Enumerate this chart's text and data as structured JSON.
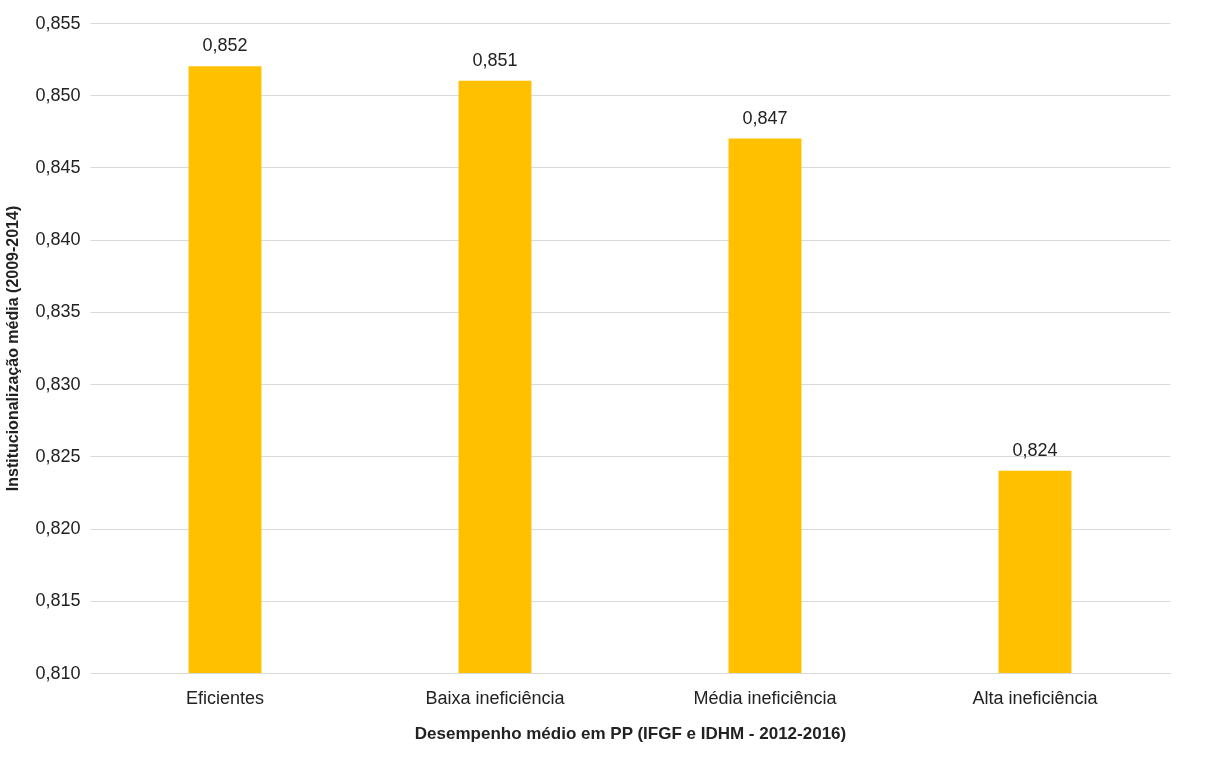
{
  "chart_data": {
    "type": "bar",
    "xlabel": "Desempenho médio em PP (IFGF e IDHM - 2012-2016)",
    "ylabel": "Institucionalização média (2009-2014)",
    "categories": [
      "Eficientes",
      "Baixa ineficiência",
      "Média ineficiência",
      "Alta ineficiência"
    ],
    "values": [
      0.852,
      0.851,
      0.847,
      0.824
    ],
    "value_labels": [
      "0,852",
      "0,851",
      "0,847",
      "0,824"
    ],
    "color": "#ffc000",
    "ylim": [
      0.81,
      0.855
    ],
    "yticks": [
      {
        "value": 0.81,
        "label": "0,810"
      },
      {
        "value": 0.815,
        "label": "0,815"
      },
      {
        "value": 0.82,
        "label": "0,820"
      },
      {
        "value": 0.825,
        "label": "0,825"
      },
      {
        "value": 0.83,
        "label": "0,830"
      },
      {
        "value": 0.835,
        "label": "0,835"
      },
      {
        "value": 0.84,
        "label": "0,840"
      },
      {
        "value": 0.845,
        "label": "0,845"
      },
      {
        "value": 0.85,
        "label": "0,850"
      },
      {
        "value": 0.855,
        "label": "0,855"
      }
    ],
    "grid": "y"
  }
}
